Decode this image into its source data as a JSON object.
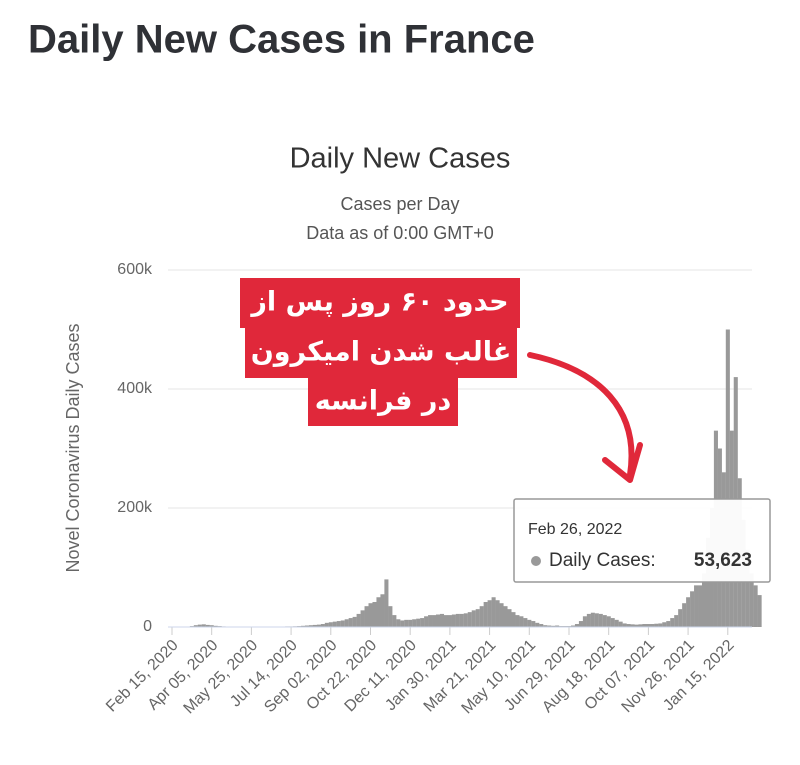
{
  "page_title": "Daily New Cases in France",
  "chart_data": {
    "type": "bar",
    "title": "Daily New Cases",
    "subtitle": [
      "Cases per Day",
      "Data as of 0:00 GMT+0"
    ],
    "y_label": "Novel Coronavirus Daily Cases",
    "color": "#999999",
    "grid": true,
    "ylim": [
      0,
      600000
    ],
    "yticks": [
      0,
      {
        "value": 200000,
        "label": "200k"
      },
      {
        "value": 400000,
        "label": "400k"
      },
      {
        "value": 600000,
        "label": "600k"
      }
    ],
    "categories": [
      "Feb 15, 2020",
      null,
      null,
      null,
      null,
      null,
      null,
      null,
      null,
      null,
      "Apr 05, 2020",
      null,
      null,
      null,
      null,
      null,
      null,
      null,
      null,
      null,
      "May 25, 2020",
      null,
      null,
      null,
      null,
      null,
      null,
      null,
      null,
      null,
      "Jul 14, 2020",
      null,
      null,
      null,
      null,
      null,
      null,
      null,
      null,
      null,
      "Sep 02, 2020",
      null,
      null,
      null,
      null,
      null,
      null,
      null,
      null,
      null,
      "Oct 22, 2020",
      null,
      null,
      null,
      null,
      null,
      null,
      null,
      null,
      null,
      "Dec 11, 2020",
      null,
      null,
      null,
      null,
      null,
      null,
      null,
      null,
      null,
      "Jan 30, 2021",
      null,
      null,
      null,
      null,
      null,
      null,
      null,
      null,
      null,
      "Mar 21, 2021",
      null,
      null,
      null,
      null,
      null,
      null,
      null,
      null,
      null,
      "May 10, 2021",
      null,
      null,
      null,
      null,
      null,
      null,
      null,
      null,
      null,
      "Jun 29, 2021",
      null,
      null,
      null,
      null,
      null,
      null,
      null,
      null,
      null,
      "Aug 18, 2021",
      null,
      null,
      null,
      null,
      null,
      null,
      null,
      null,
      null,
      "Oct 07, 2021",
      null,
      null,
      null,
      null,
      null,
      null,
      null,
      null,
      null,
      "Nov 26, 2021",
      null,
      null,
      null,
      null,
      null,
      null,
      null,
      null,
      null,
      "Jan 15, 2022",
      null,
      null,
      null,
      null,
      null,
      null,
      null,
      null
    ],
    "values": [
      0,
      0,
      0,
      0,
      500,
      1500,
      3000,
      4000,
      4500,
      3500,
      3000,
      2000,
      1500,
      1000,
      800,
      600,
      500,
      400,
      300,
      300,
      300,
      300,
      400,
      400,
      500,
      500,
      600,
      700,
      800,
      1000,
      1000,
      1200,
      1500,
      2000,
      2500,
      3000,
      3500,
      4000,
      5000,
      7000,
      8000,
      9000,
      10000,
      11000,
      13000,
      15000,
      17000,
      22000,
      28000,
      35000,
      40000,
      42000,
      50000,
      55000,
      80000,
      35000,
      20000,
      13000,
      11000,
      12000,
      12000,
      13000,
      14000,
      15000,
      18000,
      20000,
      20000,
      21000,
      22000,
      20000,
      20000,
      21000,
      22000,
      22000,
      23000,
      25000,
      28000,
      30000,
      35000,
      42000,
      45000,
      50000,
      45000,
      40000,
      35000,
      30000,
      25000,
      20000,
      18000,
      15000,
      12000,
      10000,
      7000,
      5000,
      3000,
      2500,
      2000,
      2500,
      1500,
      1500,
      1500,
      2500,
      5000,
      10000,
      18000,
      22000,
      24000,
      23000,
      22000,
      20000,
      18000,
      15000,
      12000,
      9000,
      6000,
      5000,
      4500,
      4000,
      4500,
      5000,
      5000,
      5000,
      5500,
      6000,
      8000,
      10000,
      15000,
      20000,
      30000,
      40000,
      50000,
      60000,
      70000,
      70000,
      90000,
      150000,
      200000,
      330000,
      300000,
      260000,
      500000,
      330000,
      420000,
      250000,
      180000,
      130000,
      90000,
      70000,
      53623
    ],
    "tooltip": {
      "x": "Feb 26, 2022",
      "series_label": "Daily Cases:",
      "value_label": "53,623"
    },
    "annotation": [
      "حدود ۶۰ روز پس از",
      "غالب شدن امیکرون",
      "در فرانسه"
    ]
  }
}
